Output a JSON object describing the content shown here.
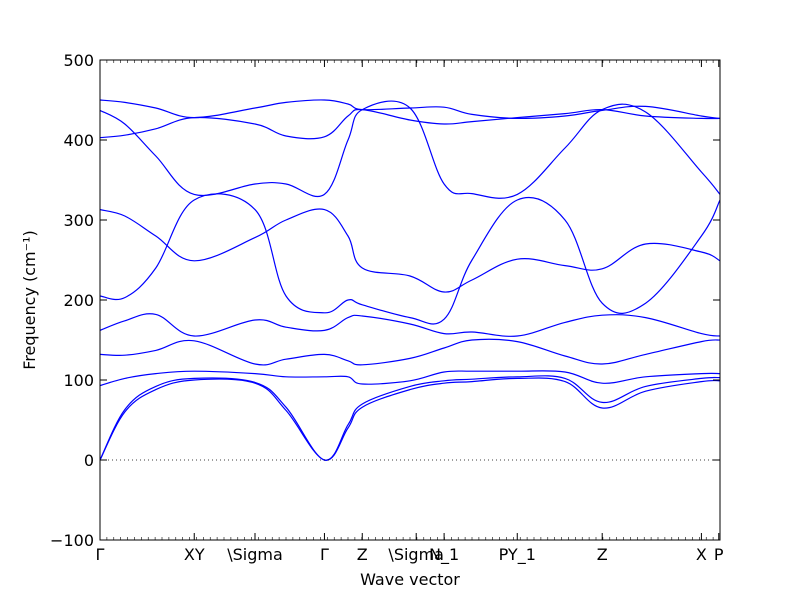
{
  "chart_data": {
    "type": "line",
    "xlabel": "Wave vector",
    "ylabel": "Frequency (cm⁻¹)",
    "ylim": [
      -100,
      500
    ],
    "yticks": [
      -100,
      0,
      100,
      200,
      300,
      400,
      500
    ],
    "xlim": [
      0,
      1
    ],
    "xticks": [
      {
        "pos": 0.0,
        "label": "Γ"
      },
      {
        "pos": 0.152,
        "label": "XY"
      },
      {
        "pos": 0.25,
        "label": "\\Sigma"
      },
      {
        "pos": 0.362,
        "label": "Γ"
      },
      {
        "pos": 0.423,
        "label": "Z"
      },
      {
        "pos": 0.51,
        "label": "\\Sigma"
      },
      {
        "pos": 0.555,
        "label": "N_1"
      },
      {
        "pos": 0.673,
        "label": "PY_1"
      },
      {
        "pos": 0.81,
        "label": "Z"
      },
      {
        "pos": 0.97,
        "label": "X"
      },
      {
        "pos": 0.998,
        "label": "P"
      }
    ],
    "grid": false,
    "zero_line": true,
    "series_color": "#0000ff",
    "series": [
      {
        "x": [
          0,
          0.04,
          0.09,
          0.152,
          0.25,
          0.3,
          0.362,
          0.4,
          0.423,
          0.5,
          0.555,
          0.6,
          0.673,
          0.75,
          0.81,
          0.88,
          0.97,
          1.0
        ],
        "y": [
          0,
          60,
          88,
          100,
          96,
          62,
          0,
          40,
          66,
          88,
          96,
          98,
          102,
          98,
          65,
          86,
          98,
          99
        ]
      },
      {
        "x": [
          0,
          0.04,
          0.09,
          0.152,
          0.25,
          0.3,
          0.362,
          0.4,
          0.423,
          0.5,
          0.555,
          0.6,
          0.673,
          0.75,
          0.81,
          0.88,
          0.97,
          1.0
        ],
        "y": [
          0,
          63,
          92,
          102,
          97,
          66,
          0,
          44,
          70,
          92,
          99,
          101,
          104,
          102,
          72,
          92,
          102,
          103
        ]
      },
      {
        "x": [
          0,
          0.04,
          0.09,
          0.152,
          0.25,
          0.3,
          0.362,
          0.4,
          0.423,
          0.5,
          0.555,
          0.6,
          0.673,
          0.75,
          0.81,
          0.88,
          0.97,
          1.0
        ],
        "y": [
          93,
          102,
          108,
          111,
          108,
          104,
          104,
          104,
          95,
          99,
          110,
          111,
          111,
          110,
          96,
          104,
          108,
          108
        ]
      },
      {
        "x": [
          0,
          0.04,
          0.09,
          0.152,
          0.25,
          0.3,
          0.362,
          0.4,
          0.423,
          0.5,
          0.555,
          0.6,
          0.673,
          0.75,
          0.81,
          0.88,
          0.97,
          1.0
        ],
        "y": [
          132,
          131,
          137,
          149,
          120,
          126,
          132,
          124,
          119,
          127,
          140,
          150,
          148,
          130,
          120,
          132,
          148,
          150
        ]
      },
      {
        "x": [
          0,
          0.04,
          0.09,
          0.152,
          0.25,
          0.3,
          0.362,
          0.4,
          0.423,
          0.5,
          0.555,
          0.6,
          0.673,
          0.75,
          0.81,
          0.88,
          0.97,
          1.0
        ],
        "y": [
          162,
          174,
          182,
          155,
          175,
          166,
          162,
          178,
          180,
          170,
          158,
          160,
          155,
          172,
          181,
          178,
          158,
          155
        ]
      },
      {
        "x": [
          0,
          0.04,
          0.09,
          0.152,
          0.25,
          0.3,
          0.362,
          0.4,
          0.423,
          0.5,
          0.555,
          0.6,
          0.673,
          0.75,
          0.81,
          0.88,
          0.97,
          1.0
        ],
        "y": [
          205,
          203,
          240,
          325,
          313,
          205,
          184,
          200,
          194,
          178,
          176,
          250,
          325,
          300,
          196,
          196,
          280,
          325
        ]
      },
      {
        "x": [
          0,
          0.04,
          0.09,
          0.152,
          0.25,
          0.3,
          0.362,
          0.4,
          0.423,
          0.5,
          0.555,
          0.6,
          0.673,
          0.75,
          0.81,
          0.88,
          0.97,
          1.0
        ],
        "y": [
          313,
          305,
          280,
          249,
          278,
          300,
          313,
          280,
          240,
          230,
          210,
          225,
          251,
          243,
          239,
          270,
          260,
          249
        ]
      },
      {
        "x": [
          0,
          0.04,
          0.09,
          0.152,
          0.25,
          0.3,
          0.362,
          0.4,
          0.423,
          0.5,
          0.555,
          0.6,
          0.673,
          0.75,
          0.81,
          0.88,
          0.97,
          1.0
        ],
        "y": [
          437,
          420,
          380,
          332,
          345,
          345,
          332,
          400,
          438,
          440,
          345,
          333,
          332,
          390,
          438,
          435,
          360,
          332
        ]
      },
      {
        "x": [
          0,
          0.04,
          0.09,
          0.152,
          0.25,
          0.3,
          0.362,
          0.4,
          0.423,
          0.5,
          0.555,
          0.6,
          0.673,
          0.75,
          0.81,
          0.88,
          0.97,
          1.0
        ],
        "y": [
          403,
          406,
          414,
          428,
          420,
          405,
          404,
          430,
          438,
          425,
          420,
          423,
          428,
          433,
          438,
          430,
          427,
          427
        ]
      },
      {
        "x": [
          0,
          0.04,
          0.09,
          0.152,
          0.25,
          0.3,
          0.362,
          0.4,
          0.423,
          0.5,
          0.555,
          0.6,
          0.673,
          0.75,
          0.81,
          0.88,
          0.97,
          1.0
        ],
        "y": [
          450,
          447,
          440,
          428,
          440,
          447,
          450,
          445,
          438,
          440,
          441,
          432,
          427,
          430,
          437,
          442,
          430,
          427
        ]
      }
    ]
  }
}
